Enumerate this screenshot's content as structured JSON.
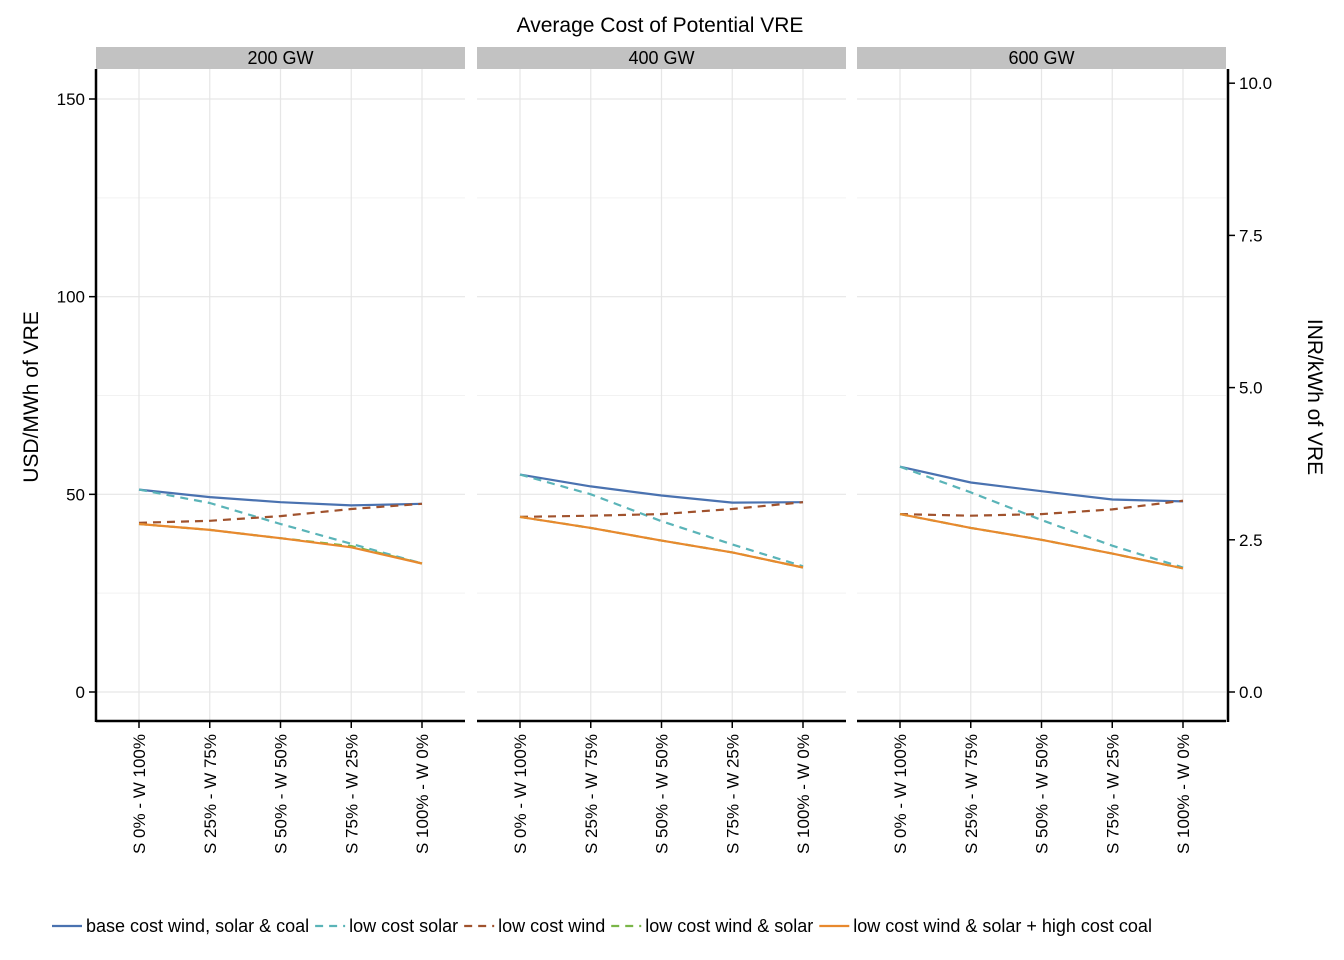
{
  "chart_data": {
    "type": "line",
    "title": "Average Cost of Potential VRE",
    "ylabel": "USD/MWh of VRE",
    "ylabel_right": "INR/kWh of VRE",
    "xlabel": "",
    "ylim": [
      -7,
      150
    ],
    "y_ticks": [
      0,
      50,
      100,
      150
    ],
    "y_right_ticks": [
      "0.0",
      "2.5",
      "5.0",
      "7.5",
      "10.0"
    ],
    "y_right_tick_values": [
      0,
      2.5,
      5,
      7.5,
      10
    ],
    "usd_per_inr_kwh": 15.4,
    "grid": true,
    "legend_position": "bottom",
    "categories": [
      "S 0% - W 100%",
      "S 25% - W 75%",
      "S 50% - W 50%",
      "S 75% - W 25%",
      "S 100% - W 0%"
    ],
    "series_styles": [
      {
        "name": "base cost wind, solar & coal",
        "color": "#4a72b0",
        "dash": "solid"
      },
      {
        "name": "low cost solar",
        "color": "#5ab4b8",
        "dash": "dashed"
      },
      {
        "name": "low cost wind",
        "color": "#a0522d",
        "dash": "dashed"
      },
      {
        "name": "low cost wind & solar",
        "color": "#7ab648",
        "dash": "dashed"
      },
      {
        "name": "low cost wind & solar + high cost coal",
        "color": "#e8892e",
        "dash": "solid"
      }
    ],
    "panels": [
      {
        "label": "200 GW",
        "series": [
          {
            "name": "base cost wind, solar & coal",
            "values": [
              51.2,
              49.3,
              48.0,
              47.2,
              47.6
            ]
          },
          {
            "name": "low cost solar",
            "values": [
              51.2,
              47.8,
              42.5,
              37.5,
              32.5
            ]
          },
          {
            "name": "low cost wind",
            "values": [
              42.8,
              43.3,
              44.5,
              46.3,
              47.6
            ]
          },
          {
            "name": "low cost wind & solar",
            "values": [
              42.5,
              41.0,
              38.9,
              36.9,
              32.5
            ]
          },
          {
            "name": "low cost wind & solar + high cost coal",
            "values": [
              42.5,
              41.0,
              38.9,
              36.6,
              32.5
            ]
          }
        ]
      },
      {
        "label": "400 GW",
        "series": [
          {
            "name": "base cost wind, solar & coal",
            "values": [
              55.0,
              52.0,
              49.7,
              47.9,
              48.0
            ]
          },
          {
            "name": "low cost solar",
            "values": [
              55.0,
              50.0,
              43.2,
              37.3,
              31.8
            ]
          },
          {
            "name": "low cost wind",
            "values": [
              44.3,
              44.6,
              45.0,
              46.3,
              48.0
            ]
          },
          {
            "name": "low cost wind & solar",
            "values": [
              44.3,
              41.5,
              38.3,
              35.3,
              31.5
            ]
          },
          {
            "name": "low cost wind & solar + high cost coal",
            "values": [
              44.3,
              41.5,
              38.3,
              35.3,
              31.5
            ]
          }
        ]
      },
      {
        "label": "600 GW",
        "series": [
          {
            "name": "base cost wind, solar & coal",
            "values": [
              57.0,
              53.0,
              50.8,
              48.7,
              48.2
            ]
          },
          {
            "name": "low cost solar",
            "values": [
              57.0,
              50.5,
              43.5,
              37.0,
              31.5
            ]
          },
          {
            "name": "low cost wind",
            "values": [
              45.0,
              44.6,
              45.0,
              46.2,
              48.4
            ]
          },
          {
            "name": "low cost wind & solar",
            "values": [
              45.0,
              41.5,
              38.5,
              35.0,
              31.3
            ]
          },
          {
            "name": "low cost wind & solar + high cost coal",
            "values": [
              45.0,
              41.5,
              38.5,
              35.0,
              31.3
            ]
          }
        ]
      }
    ]
  }
}
